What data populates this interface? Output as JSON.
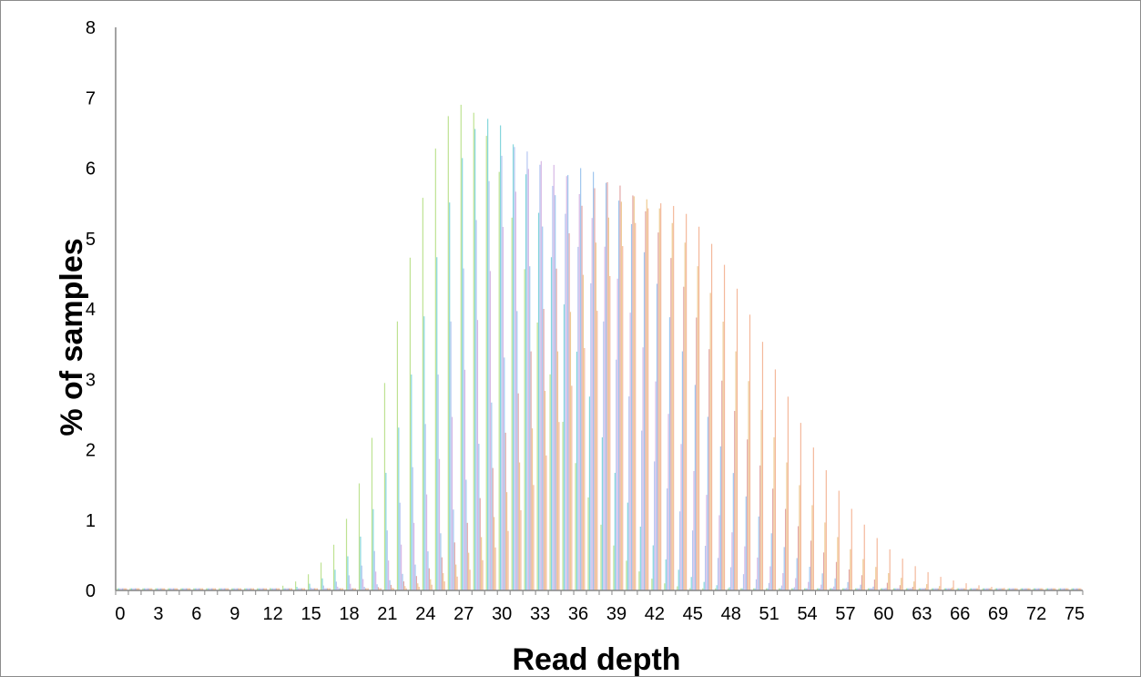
{
  "chart_data": {
    "type": "bar",
    "title": "",
    "xlabel": "Read depth",
    "ylabel": "% of samples",
    "xlim": [
      0,
      75
    ],
    "ylim": [
      0,
      8
    ],
    "ytick_step": 1,
    "xtick_step": 3,
    "grid": false,
    "legend": "none",
    "palette": [
      "#a8d86e",
      "#5bc8d0",
      "#9eb4ec",
      "#f0a07a",
      "#d98a8a",
      "#c9a0dc",
      "#7fb3e8",
      "#e8b86e"
    ],
    "series_count": 8,
    "series": [
      {
        "color": "#a8d86e",
        "center": 27,
        "peak": 6.9,
        "sd_left": 4.6,
        "sd_right": 5.5
      },
      {
        "color": "#5bc8d0",
        "center": 29,
        "peak": 6.7,
        "sd_left": 4.8,
        "sd_right": 6.0
      },
      {
        "color": "#9eb4ec",
        "center": 31,
        "peak": 6.3,
        "sd_left": 5.0,
        "sd_right": 7.0
      },
      {
        "color": "#c9a0dc",
        "center": 33,
        "peak": 6.1,
        "sd_left": 5.2,
        "sd_right": 7.5
      },
      {
        "color": "#7fb3e8",
        "center": 36,
        "peak": 6.0,
        "sd_left": 5.5,
        "sd_right": 7.5
      },
      {
        "color": "#d98a8a",
        "center": 38,
        "peak": 5.8,
        "sd_left": 5.8,
        "sd_right": 7.8
      },
      {
        "color": "#e8b86e",
        "center": 40,
        "peak": 5.6,
        "sd_left": 6.0,
        "sd_right": 8.0
      },
      {
        "color": "#f0a07a",
        "center": 42,
        "peak": 5.5,
        "sd_left": 6.2,
        "sd_right": 8.5
      }
    ]
  }
}
